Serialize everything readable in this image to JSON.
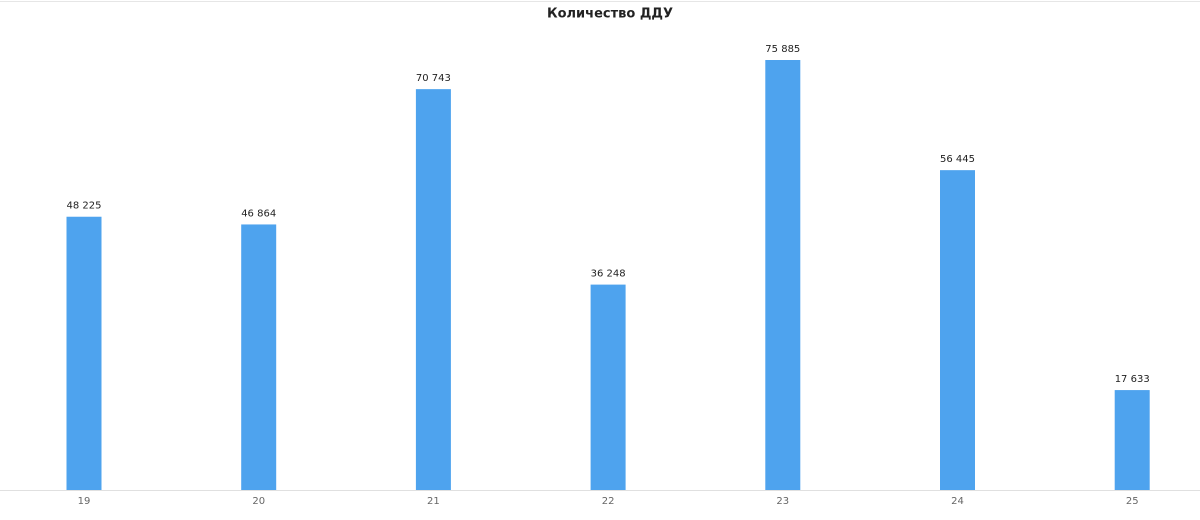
{
  "chart_data": {
    "type": "bar",
    "title": "Количество ДДУ",
    "categories": [
      "19",
      "20",
      "21",
      "22",
      "23",
      "24",
      "25"
    ],
    "values": [
      48225,
      46864,
      70743,
      36248,
      75885,
      56445,
      17633
    ],
    "value_labels": [
      "48 225",
      "46 864",
      "70 743",
      "36 248",
      "75 885",
      "56 445",
      "17 633"
    ],
    "color": "#4ea3ee"
  }
}
